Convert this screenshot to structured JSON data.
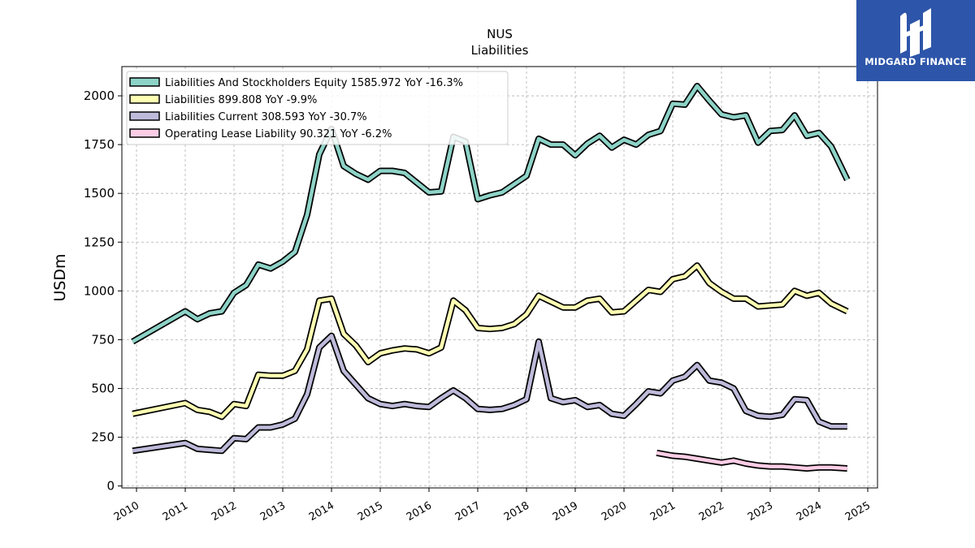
{
  "brand": {
    "name": "MIDGARD FINANCE",
    "bg_color": "#2d55a9"
  },
  "chart_data": {
    "type": "line",
    "title": "NUS",
    "subtitle": "Liabilities",
    "ylabel": "USDm",
    "xlabel": "",
    "ylim": [
      -10,
      2150
    ],
    "xlim": [
      2009.7,
      2025.2
    ],
    "yticks": [
      0,
      250,
      500,
      750,
      1000,
      1250,
      1500,
      1750,
      2000
    ],
    "xticks": [
      2010,
      2011,
      2012,
      2013,
      2014,
      2015,
      2016,
      2017,
      2018,
      2019,
      2020,
      2021,
      2022,
      2023,
      2024,
      2025
    ],
    "grid": true,
    "legend_position": "top-left",
    "series": [
      {
        "name": "Liabilities And Stockholders Equity",
        "legend_label": "Liabilities And Stockholders Equity  1585.972 YoY -16.3%",
        "color": "#8dd3c7",
        "points": [
          [
            2009.92,
            740
          ],
          [
            2011.0,
            895
          ],
          [
            2011.25,
            855
          ],
          [
            2011.5,
            885
          ],
          [
            2011.75,
            895
          ],
          [
            2012.0,
            990
          ],
          [
            2012.25,
            1030
          ],
          [
            2012.5,
            1135
          ],
          [
            2012.75,
            1115
          ],
          [
            2013.0,
            1150
          ],
          [
            2013.25,
            1200
          ],
          [
            2013.5,
            1390
          ],
          [
            2013.75,
            1700
          ],
          [
            2014.0,
            1830
          ],
          [
            2014.25,
            1640
          ],
          [
            2014.5,
            1600
          ],
          [
            2014.75,
            1570
          ],
          [
            2015.0,
            1615
          ],
          [
            2015.25,
            1615
          ],
          [
            2015.5,
            1605
          ],
          [
            2016.0,
            1505
          ],
          [
            2016.25,
            1510
          ],
          [
            2016.5,
            1790
          ],
          [
            2016.75,
            1765
          ],
          [
            2017.0,
            1470
          ],
          [
            2017.25,
            1490
          ],
          [
            2017.5,
            1505
          ],
          [
            2018.0,
            1590
          ],
          [
            2018.25,
            1780
          ],
          [
            2018.5,
            1750
          ],
          [
            2018.75,
            1750
          ],
          [
            2019.0,
            1695
          ],
          [
            2019.25,
            1755
          ],
          [
            2019.5,
            1795
          ],
          [
            2019.75,
            1735
          ],
          [
            2020.0,
            1775
          ],
          [
            2020.25,
            1750
          ],
          [
            2020.5,
            1800
          ],
          [
            2020.75,
            1820
          ],
          [
            2021.0,
            1960
          ],
          [
            2021.25,
            1955
          ],
          [
            2021.5,
            2050
          ],
          [
            2021.75,
            1975
          ],
          [
            2022.0,
            1905
          ],
          [
            2022.25,
            1890
          ],
          [
            2022.5,
            1900
          ],
          [
            2022.75,
            1760
          ],
          [
            2023.0,
            1820
          ],
          [
            2023.25,
            1825
          ],
          [
            2023.5,
            1900
          ],
          [
            2023.75,
            1795
          ],
          [
            2024.0,
            1810
          ],
          [
            2024.25,
            1740
          ],
          [
            2024.58,
            1570
          ]
        ]
      },
      {
        "name": "Liabilities",
        "legend_label": "Liabilities  899.808 YoY -9.9%",
        "color": "#ffffb3",
        "points": [
          [
            2009.92,
            370
          ],
          [
            2011.0,
            425
          ],
          [
            2011.25,
            390
          ],
          [
            2011.5,
            380
          ],
          [
            2011.75,
            355
          ],
          [
            2012.0,
            420
          ],
          [
            2012.25,
            410
          ],
          [
            2012.5,
            570
          ],
          [
            2012.75,
            565
          ],
          [
            2013.0,
            565
          ],
          [
            2013.25,
            590
          ],
          [
            2013.5,
            700
          ],
          [
            2013.75,
            950
          ],
          [
            2014.0,
            960
          ],
          [
            2014.25,
            780
          ],
          [
            2014.5,
            720
          ],
          [
            2014.75,
            635
          ],
          [
            2015.0,
            680
          ],
          [
            2015.25,
            695
          ],
          [
            2015.5,
            705
          ],
          [
            2015.75,
            700
          ],
          [
            2016.0,
            680
          ],
          [
            2016.25,
            710
          ],
          [
            2016.5,
            950
          ],
          [
            2016.75,
            900
          ],
          [
            2017.0,
            810
          ],
          [
            2017.25,
            805
          ],
          [
            2017.5,
            810
          ],
          [
            2017.75,
            830
          ],
          [
            2018.0,
            880
          ],
          [
            2018.25,
            975
          ],
          [
            2018.5,
            945
          ],
          [
            2018.75,
            915
          ],
          [
            2019.0,
            915
          ],
          [
            2019.25,
            950
          ],
          [
            2019.5,
            960
          ],
          [
            2019.75,
            890
          ],
          [
            2020.0,
            895
          ],
          [
            2020.25,
            950
          ],
          [
            2020.5,
            1005
          ],
          [
            2020.75,
            995
          ],
          [
            2021.0,
            1060
          ],
          [
            2021.25,
            1075
          ],
          [
            2021.5,
            1130
          ],
          [
            2021.75,
            1040
          ],
          [
            2022.0,
            995
          ],
          [
            2022.25,
            960
          ],
          [
            2022.5,
            960
          ],
          [
            2022.75,
            920
          ],
          [
            2023.0,
            925
          ],
          [
            2023.25,
            930
          ],
          [
            2023.5,
            1000
          ],
          [
            2023.75,
            975
          ],
          [
            2024.0,
            990
          ],
          [
            2024.25,
            935
          ],
          [
            2024.58,
            895
          ]
        ]
      },
      {
        "name": "Liabilities Current",
        "legend_label": "Liabilities Current  308.593 YoY -30.7%",
        "color": "#bebada",
        "points": [
          [
            2009.92,
            180
          ],
          [
            2011.0,
            220
          ],
          [
            2011.25,
            190
          ],
          [
            2011.5,
            185
          ],
          [
            2011.75,
            180
          ],
          [
            2012.0,
            245
          ],
          [
            2012.25,
            240
          ],
          [
            2012.5,
            300
          ],
          [
            2012.75,
            300
          ],
          [
            2013.0,
            315
          ],
          [
            2013.25,
            345
          ],
          [
            2013.5,
            470
          ],
          [
            2013.75,
            710
          ],
          [
            2014.0,
            770
          ],
          [
            2014.25,
            590
          ],
          [
            2014.5,
            520
          ],
          [
            2014.75,
            450
          ],
          [
            2015.0,
            420
          ],
          [
            2015.25,
            410
          ],
          [
            2015.5,
            420
          ],
          [
            2015.75,
            410
          ],
          [
            2016.0,
            405
          ],
          [
            2016.25,
            450
          ],
          [
            2016.5,
            490
          ],
          [
            2016.75,
            450
          ],
          [
            2017.0,
            395
          ],
          [
            2017.25,
            390
          ],
          [
            2017.5,
            395
          ],
          [
            2017.75,
            415
          ],
          [
            2018.0,
            445
          ],
          [
            2018.25,
            740
          ],
          [
            2018.5,
            450
          ],
          [
            2018.75,
            430
          ],
          [
            2019.0,
            440
          ],
          [
            2019.25,
            405
          ],
          [
            2019.5,
            415
          ],
          [
            2019.75,
            370
          ],
          [
            2020.0,
            360
          ],
          [
            2020.25,
            420
          ],
          [
            2020.5,
            485
          ],
          [
            2020.75,
            475
          ],
          [
            2021.0,
            540
          ],
          [
            2021.25,
            560
          ],
          [
            2021.5,
            620
          ],
          [
            2021.75,
            540
          ],
          [
            2022.0,
            530
          ],
          [
            2022.25,
            500
          ],
          [
            2022.5,
            385
          ],
          [
            2022.75,
            360
          ],
          [
            2023.0,
            355
          ],
          [
            2023.25,
            365
          ],
          [
            2023.5,
            445
          ],
          [
            2023.75,
            440
          ],
          [
            2024.0,
            330
          ],
          [
            2024.25,
            305
          ],
          [
            2024.58,
            305
          ]
        ]
      },
      {
        "name": "Operating Lease Liability",
        "legend_label": "Operating Lease Liability  90.321 YoY -6.2%",
        "color": "#fccde5",
        "points": [
          [
            2020.67,
            170
          ],
          [
            2021.0,
            155
          ],
          [
            2021.25,
            150
          ],
          [
            2021.5,
            140
          ],
          [
            2021.75,
            130
          ],
          [
            2022.0,
            120
          ],
          [
            2022.25,
            130
          ],
          [
            2022.5,
            115
          ],
          [
            2022.75,
            105
          ],
          [
            2023.0,
            100
          ],
          [
            2023.25,
            100
          ],
          [
            2023.5,
            95
          ],
          [
            2023.75,
            90
          ],
          [
            2024.0,
            95
          ],
          [
            2024.25,
            95
          ],
          [
            2024.58,
            90
          ]
        ]
      }
    ]
  }
}
